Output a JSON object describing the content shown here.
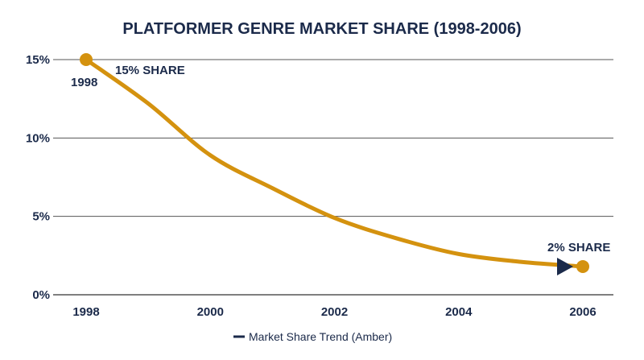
{
  "chart_data": {
    "type": "line",
    "title": "PLATFORMER GENRE MARKET SHARE (1998-2006)",
    "xlabel": "",
    "ylabel": "",
    "x_ticks": [
      "1998",
      "2000",
      "2002",
      "2004",
      "2006"
    ],
    "y_ticks": [
      "0%",
      "5%",
      "10%",
      "15%"
    ],
    "xlim": [
      1998,
      2006
    ],
    "ylim": [
      0,
      15
    ],
    "grid": "horizontal",
    "legend_position": "bottom-center",
    "series": [
      {
        "name": "Market Share Trend (Amber)",
        "color": "#d4920f",
        "x": [
          1998,
          1999,
          2000,
          2001,
          2002,
          2003,
          2004,
          2005,
          2006
        ],
        "values": [
          15,
          12.2,
          8.9,
          6.8,
          4.9,
          3.6,
          2.6,
          2.1,
          1.8
        ]
      }
    ],
    "annotations": [
      {
        "text": "1998",
        "x": 1998,
        "y": 15
      },
      {
        "text": "15% SHARE",
        "x": 1998,
        "y": 15
      },
      {
        "text": "2% SHARE",
        "x": 2006,
        "y": 1.8
      }
    ]
  },
  "colors": {
    "text": "#1b2a4a",
    "line": "#d4920f",
    "grid": "#555555"
  }
}
